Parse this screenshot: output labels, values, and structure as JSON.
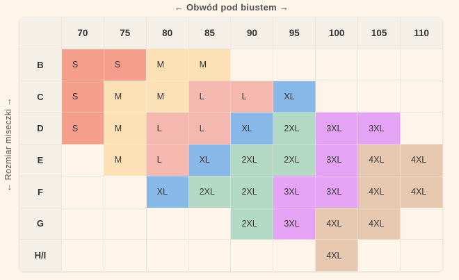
{
  "title_axis_top": "← Obwód pod biustem →",
  "title_axis_left": "← Rozmiar miseczki →",
  "size_colors": {
    "S": "#f59e8c",
    "M": "#fde1b6",
    "L": "#f5b8ae",
    "XL": "#88b8e8",
    "2XL": "#b3d8c3",
    "3XL": "#e4a3f5",
    "4XL": "#e6c7b0"
  },
  "chart_data": {
    "type": "table",
    "title": "",
    "xlabel": "Obwód pod biustem",
    "ylabel": "Rozmiar miseczki",
    "columns": [
      "70",
      "75",
      "80",
      "85",
      "90",
      "95",
      "100",
      "105",
      "110"
    ],
    "rows": [
      {
        "label": "B",
        "cells": [
          "S",
          "S",
          "M",
          "M",
          "",
          "",
          "",
          "",
          ""
        ]
      },
      {
        "label": "C",
        "cells": [
          "S",
          "M",
          "M",
          "L",
          "L",
          "XL",
          "",
          "",
          ""
        ]
      },
      {
        "label": "D",
        "cells": [
          "S",
          "M",
          "L",
          "L",
          "XL",
          "2XL",
          "3XL",
          "3XL",
          ""
        ]
      },
      {
        "label": "E",
        "cells": [
          "",
          "M",
          "L",
          "XL",
          "2XL",
          "2XL",
          "3XL",
          "4XL",
          "4XL"
        ]
      },
      {
        "label": "F",
        "cells": [
          "",
          "",
          "XL",
          "2XL",
          "2XL",
          "3XL",
          "3XL",
          "4XL",
          "4XL"
        ]
      },
      {
        "label": "G",
        "cells": [
          "",
          "",
          "",
          "",
          "2XL",
          "3XL",
          "4XL",
          "4XL",
          ""
        ]
      },
      {
        "label": "H/I",
        "cells": [
          "",
          "",
          "",
          "",
          "",
          "",
          "4XL",
          "",
          ""
        ]
      }
    ]
  }
}
